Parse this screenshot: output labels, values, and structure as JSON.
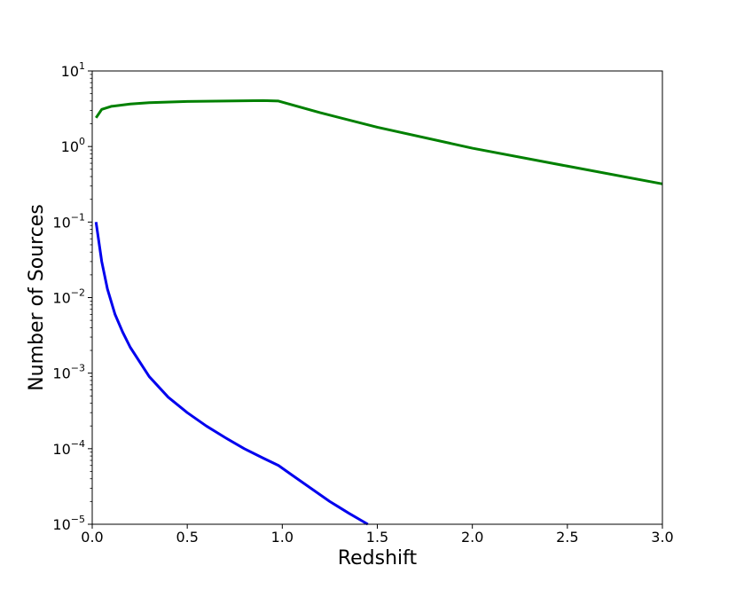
{
  "chart_data": {
    "type": "line",
    "title": "",
    "xlabel": "Redshift",
    "ylabel": "Number of Sources",
    "xlim": [
      0.0,
      3.0
    ],
    "ylim": [
      1e-05,
      10
    ],
    "yscale": "log",
    "grid": false,
    "legend": "none",
    "x_ticks": [
      "0.0",
      "0.5",
      "1.0",
      "1.5",
      "2.0",
      "2.5",
      "3.0"
    ],
    "x_tick_values": [
      0.0,
      0.5,
      1.0,
      1.5,
      2.0,
      2.5,
      3.0
    ],
    "y_ticks": [
      {
        "value": 1e-05,
        "base": "10",
        "exp": "−5"
      },
      {
        "value": 0.0001,
        "base": "10",
        "exp": "−4"
      },
      {
        "value": 0.001,
        "base": "10",
        "exp": "−3"
      },
      {
        "value": 0.01,
        "base": "10",
        "exp": "−2"
      },
      {
        "value": 0.1,
        "base": "10",
        "exp": "−1"
      },
      {
        "value": 1,
        "base": "10",
        "exp": "0"
      },
      {
        "value": 10,
        "base": "10",
        "exp": "1"
      }
    ],
    "series": [
      {
        "color": "#008000",
        "x": [
          0.02,
          0.05,
          0.1,
          0.2,
          0.3,
          0.5,
          0.7,
          0.9,
          0.98,
          1.2,
          1.5,
          2.0,
          2.5,
          3.0
        ],
        "y": [
          2.4,
          3.1,
          3.4,
          3.65,
          3.8,
          3.95,
          4.0,
          4.05,
          4.0,
          2.8,
          1.8,
          0.95,
          0.55,
          0.32
        ]
      },
      {
        "color": "#0000ee",
        "x": [
          0.02,
          0.05,
          0.08,
          0.12,
          0.16,
          0.2,
          0.3,
          0.4,
          0.5,
          0.6,
          0.7,
          0.8,
          0.9,
          0.98,
          1.05,
          1.15,
          1.25,
          1.35,
          1.45
        ],
        "y": [
          0.1,
          0.03,
          0.013,
          0.006,
          0.0035,
          0.0022,
          0.0009,
          0.00048,
          0.0003,
          0.0002,
          0.00014,
          0.0001,
          7.5e-05,
          6e-05,
          4.5e-05,
          3e-05,
          2e-05,
          1.4e-05,
          1e-05
        ]
      }
    ]
  }
}
